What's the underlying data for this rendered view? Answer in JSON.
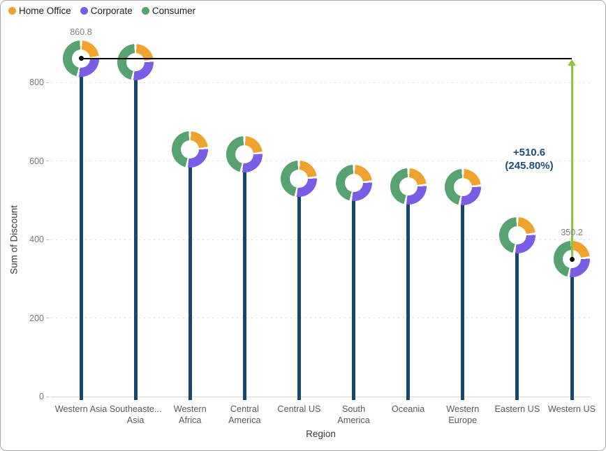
{
  "legend": {
    "items": [
      {
        "label": "Home Office",
        "color": "#F0A22E"
      },
      {
        "label": "Corporate",
        "color": "#7B5CE5"
      },
      {
        "label": "Consumer",
        "color": "#57A271"
      }
    ]
  },
  "chart_data": {
    "type": "lollipop-donut",
    "title": "",
    "xlabel": "Region",
    "ylabel": "Sum of Discount",
    "ylim": [
      0,
      900
    ],
    "yticks": [
      0,
      200,
      400,
      600,
      800
    ],
    "grid": "dotted-horizontal",
    "legend_position": "top-left",
    "categories": [
      "Western Asia",
      "Southeaste... Asia",
      "Western Africa",
      "Central America",
      "Central US",
      "South America",
      "Oceania",
      "Western Europe",
      "Eastern US",
      "Western US"
    ],
    "points": [
      {
        "label_lines": [
          "Western Asia"
        ],
        "value": 860.8,
        "data_label": "860.8"
      },
      {
        "label_lines": [
          "Southeaste...",
          "Asia"
        ],
        "value": 851
      },
      {
        "label_lines": [
          "Western",
          "Africa"
        ],
        "value": 629
      },
      {
        "label_lines": [
          "Central",
          "America"
        ],
        "value": 617
      },
      {
        "label_lines": [
          "Central US"
        ],
        "value": 555
      },
      {
        "label_lines": [
          "South",
          "America"
        ],
        "value": 544
      },
      {
        "label_lines": [
          "Oceania"
        ],
        "value": 535
      },
      {
        "label_lines": [
          "Western",
          "Europe"
        ],
        "value": 533
      },
      {
        "label_lines": [
          "Eastern US"
        ],
        "value": 411
      },
      {
        "label_lines": [
          "Western US"
        ],
        "value": 350.2,
        "data_label": "350.2"
      }
    ],
    "donut_shares": {
      "home_office": 0.23,
      "corporate": 0.29,
      "consumer": 0.48
    },
    "colors": {
      "home_office": "#F0A22E",
      "corporate": "#7B5CE5",
      "consumer": "#57A271",
      "stem": "#17466F",
      "grid": "#DCDCDC",
      "tick_label": "#767676",
      "data_label": "#808080"
    }
  },
  "annotation": {
    "delta_label": "+510.6",
    "percent_label": "(245.80%)",
    "text_color": "#1F4E79",
    "line_color": "#000000",
    "arrow_color": "#8DC63F"
  },
  "axes": {
    "x_title": "Region",
    "y_title": "Sum of Discount"
  }
}
